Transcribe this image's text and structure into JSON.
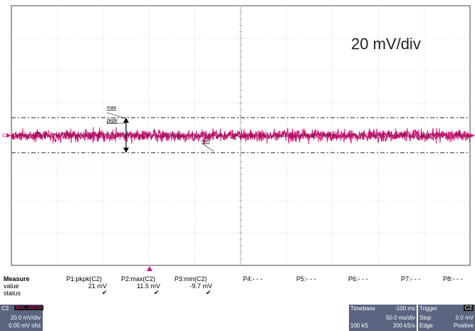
{
  "display": {
    "scale_label": "20 mV/div",
    "channel_label": "C2",
    "annotations": {
      "max": "max",
      "pkpk": "pkpk",
      "min": "min"
    },
    "trace_color": "#e0147a"
  },
  "measure": {
    "title": "Measure",
    "row_value": "value",
    "row_status": "status",
    "params": [
      {
        "name": "P1:pkpk(C2)",
        "value": "21 mV",
        "status": "✔"
      },
      {
        "name": "P2:max(C2)",
        "value": "11.5 mV",
        "status": "✔"
      },
      {
        "name": "P3:min(C2)",
        "value": "-9.7 mV",
        "status": "✔"
      },
      {
        "name": "P4:- - -",
        "value": "",
        "status": ""
      },
      {
        "name": "P5:- - -",
        "value": "",
        "status": ""
      },
      {
        "name": "P6:- - -",
        "value": "",
        "status": ""
      },
      {
        "name": "P7:- - -",
        "value": "",
        "status": ""
      },
      {
        "name": "P8:- - -",
        "value": "",
        "status": ""
      }
    ]
  },
  "channel_panel": {
    "name": "C2",
    "badge1": "BwL",
    "badge2": "AC1M",
    "vdiv": "20.0 mV/div",
    "offset": "0.00 mV ofst"
  },
  "timebase_panel": {
    "label": "Timebase",
    "delay": "-100 ms",
    "tdiv": "50.0 ms/div",
    "samples": "100 kS",
    "rate": "200 kS/s"
  },
  "trigger_panel": {
    "label": "Trigger",
    "channel": "C2",
    "mode": "Stop",
    "level": "0.0 mV",
    "type": "Edge",
    "slope": "Positive"
  }
}
